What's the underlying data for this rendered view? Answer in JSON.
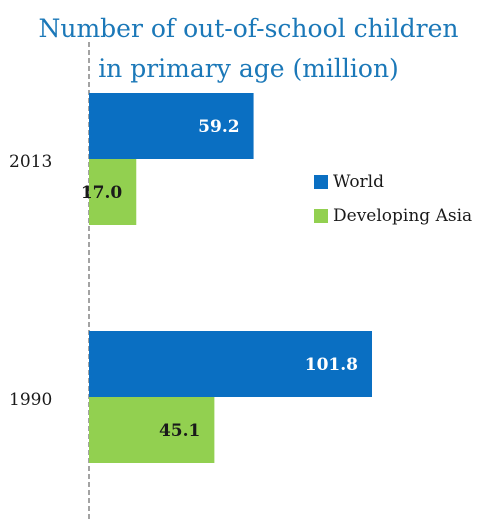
{
  "chart_data": {
    "type": "bar",
    "orientation": "horizontal",
    "title_lines": [
      "Number of  out-of-school children",
      "in primary age (million)"
    ],
    "categories": [
      "2013",
      "1990"
    ],
    "series": [
      {
        "name": "World",
        "values": [
          59.2,
          101.8
        ],
        "labels": [
          "59.2",
          "101.8"
        ],
        "color": "#0a6fc2",
        "label_color": "#ffffff"
      },
      {
        "name": "Developing Asia",
        "values": [
          17.0,
          45.1
        ],
        "labels": [
          "17.0",
          "45.1"
        ],
        "color": "#92d050",
        "label_color": "#1a1a1a"
      }
    ],
    "xlim": [
      0,
      120
    ],
    "legend_position": "right",
    "grid": false
  }
}
